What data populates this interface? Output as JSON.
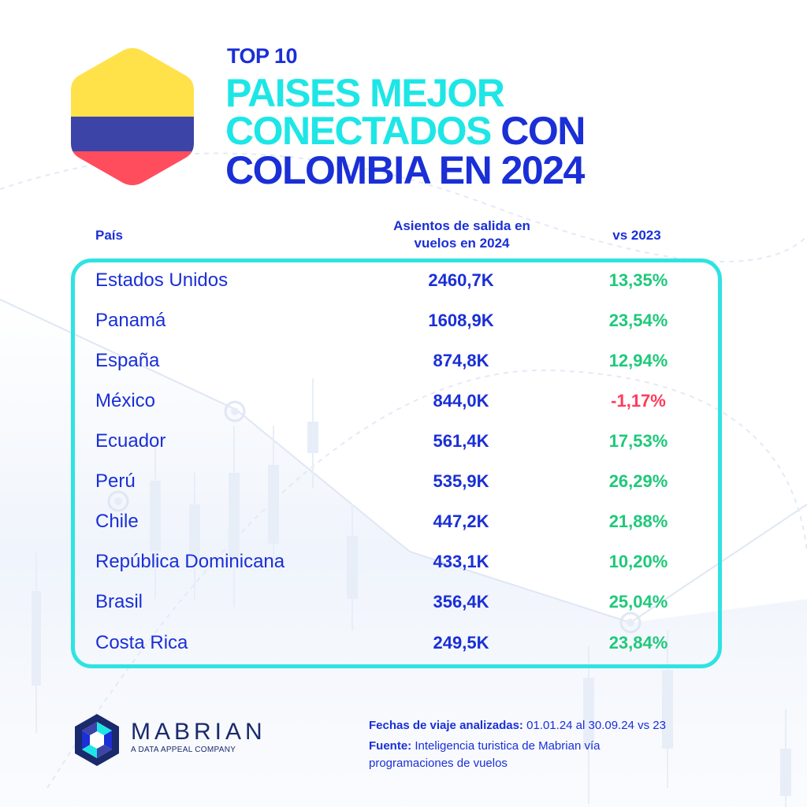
{
  "header": {
    "kicker": "TOP 10",
    "title_line1": "PAISES MEJOR",
    "title_line2_a": "CONECTADOS",
    "title_line2_b": "CON",
    "title_line3": "COLOMBIA EN 2024"
  },
  "flag": {
    "colors": [
      "#ffe14a",
      "#3c44a8",
      "#ff4d5e"
    ]
  },
  "columns": {
    "country": "País",
    "seats": "Asientos de salida en vuelos en 2024",
    "variation": "vs 2023"
  },
  "rows": [
    {
      "country": "Estados Unidos",
      "seats": "2460,7K",
      "variation": "13,35%"
    },
    {
      "country": "Panamá",
      "seats": "1608,9K",
      "variation": "23,54%"
    },
    {
      "country": "España",
      "seats": "874,8K",
      "variation": "12,94%"
    },
    {
      "country": "México",
      "seats": "844,0K",
      "variation": "-1,17%"
    },
    {
      "country": "Ecuador",
      "seats": "561,4K",
      "variation": "17,53%"
    },
    {
      "country": "Perú",
      "seats": "535,9K",
      "variation": "26,29%"
    },
    {
      "country": "Chile",
      "seats": "447,2K",
      "variation": "21,88%"
    },
    {
      "country": "República Dominicana",
      "seats": "433,1K",
      "variation": "10,20%"
    },
    {
      "country": "Brasil",
      "seats": "356,4K",
      "variation": "25,04%"
    },
    {
      "country": "Costa Rica",
      "seats": "249,5K",
      "variation": "23,84%"
    }
  ],
  "footer": {
    "brand": "MABRIAN",
    "brand_sub": "A DATA APPEAL COMPANY",
    "dates_label": "Fechas de viaje analizadas:",
    "dates_value": "01.01.24 al 30.09.24 vs 23",
    "source_label": "Fuente:",
    "source_value_1": "Inteligencia turistica de Mabrian vía",
    "source_value_2": "programaciones de vuelos"
  },
  "colors": {
    "navy": "#1a2fd6",
    "cyan": "#1ee6e6",
    "positive": "#1ec97a",
    "negative": "#ff3b5c"
  }
}
